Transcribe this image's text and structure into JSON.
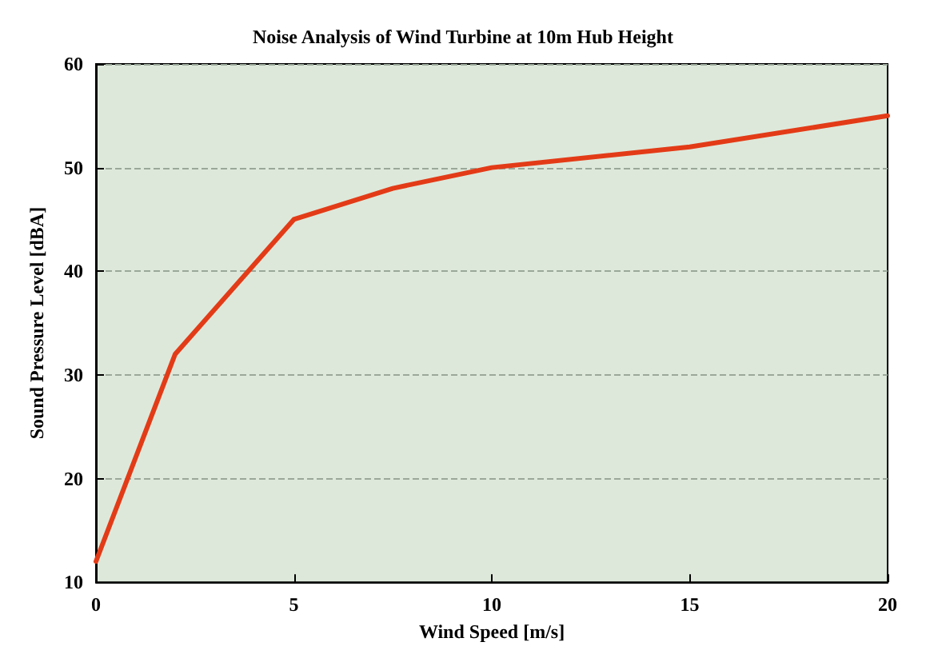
{
  "chart_data": {
    "type": "line",
    "title": "Noise Analysis of Wind Turbine at 10m Hub Height",
    "xlabel": "Wind Speed [m/s]",
    "ylabel": "Sound Pressure Level [dBA]",
    "x": [
      0,
      2,
      5,
      7.5,
      10,
      15,
      20
    ],
    "series": [
      {
        "color": "#e33b17",
        "values": [
          12,
          32,
          45,
          48,
          50,
          52,
          55
        ]
      }
    ],
    "xlim": [
      0,
      20
    ],
    "xticks": [
      0,
      5,
      10,
      15,
      20
    ],
    "ylim": [
      10,
      60
    ],
    "yticks": [
      10,
      20,
      30,
      40,
      50,
      60
    ],
    "grid": "y",
    "line_style": "solid"
  }
}
